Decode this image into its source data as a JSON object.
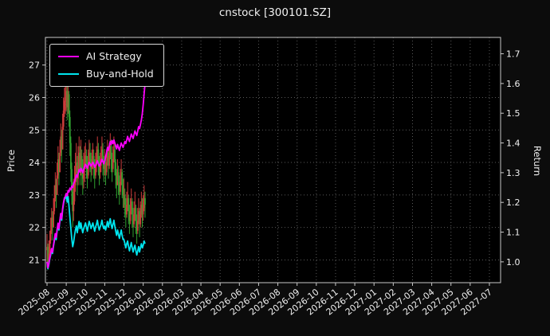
{
  "title": "cnstock [300101.SZ]",
  "chart_data": {
    "type": "candlestick+line",
    "title": "cnstock [300101.SZ]",
    "ylabel_left": "Price",
    "ylabel_right": "Return",
    "grid": "dotted",
    "legend_position": "upper-left",
    "x_tick_labels": [
      "2025-08",
      "2025-09",
      "2025-10",
      "2025-11",
      "2025-12",
      "2026-01",
      "2026-02",
      "2026-03",
      "2026-04",
      "2026-05",
      "2026-06",
      "2026-07",
      "2026-08",
      "2026-09",
      "2026-10",
      "2026-11",
      "2026-12",
      "2027-01",
      "2027-02",
      "2027-03",
      "2027-04",
      "2027-05",
      "2027-06",
      "2027-07"
    ],
    "y_left_ticks": [
      21,
      22,
      23,
      24,
      25,
      26,
      27
    ],
    "y_right_ticks": [
      1.0,
      1.1,
      1.2,
      1.3,
      1.4,
      1.5,
      1.6,
      1.7
    ],
    "y_left_range": [
      20.3,
      27.85
    ],
    "y_right_range": [
      0.93,
      1.755
    ],
    "colors": {
      "figure_bg": "#0c0c0c",
      "plot_bg": "#000000",
      "spine": "#c9c9c9",
      "grid": "#5a5a5a",
      "text": "#efefef",
      "candle_up": "#cc3b3b",
      "candle_down": "#2fa12f",
      "ai_strategy": "#ff00ff",
      "buy_and_hold": "#00e5ee"
    },
    "legend": {
      "entries": [
        {
          "label": "AI Strategy",
          "color": "#ff00ff"
        },
        {
          "label": "Buy-and-Hold",
          "color": "#00e5ee"
        }
      ]
    },
    "candles": {
      "start_month": "2025-08",
      "days_per_month": 21,
      "first_open": 21.3,
      "open_rule": "previous close",
      "close": [
        21.4,
        20.9,
        21.2,
        21.6,
        21.9,
        22.3,
        22.0,
        22.5,
        22.9,
        23.3,
        23.0,
        23.6,
        24.1,
        23.7,
        24.3,
        24.8,
        24.4,
        25.1,
        25.6,
        25.9,
        26.0,
        26.2,
        25.7,
        26.1,
        25.4,
        24.6,
        23.8,
        23.1,
        22.5,
        22.8,
        23.3,
        23.7,
        24.0,
        23.5,
        23.9,
        24.3,
        23.8,
        24.2,
        23.8,
        23.5,
        23.8,
        24.0,
        24.2,
        23.9,
        23.6,
        24.0,
        24.3,
        24.1,
        23.8,
        24.0,
        24.2,
        23.9,
        23.6,
        23.9,
        24.1,
        24.4,
        24.0,
        23.7,
        23.9,
        24.1,
        24.4,
        24.0,
        23.8,
        24.0,
        23.7,
        24.0,
        24.3,
        23.9,
        24.2,
        24.5,
        24.1,
        23.8,
        24.1,
        24.4,
        24.0,
        23.6,
        23.3,
        23.7,
        23.4,
        23.1,
        23.4,
        23.7,
        23.3,
        23.0,
        23.0,
        22.7,
        22.4,
        22.7,
        22.9,
        22.5,
        22.2,
        22.5,
        22.8,
        22.4,
        22.1,
        22.4,
        22.6,
        22.2,
        21.9,
        22.2,
        22.5,
        22.1,
        22.4,
        22.7,
        22.4,
        22.6,
        22.9,
        22.7
      ],
      "high": [
        21.8,
        21.5,
        21.6,
        21.9,
        22.3,
        22.6,
        22.5,
        22.9,
        23.3,
        23.7,
        23.5,
        24.0,
        24.5,
        24.3,
        24.7,
        25.2,
        25.0,
        25.5,
        26.0,
        26.3,
        26.4,
        26.5,
        26.4,
        26.4,
        26.2,
        25.6,
        24.8,
        24.0,
        23.4,
        23.5,
        23.9,
        24.3,
        24.6,
        24.2,
        24.5,
        24.8,
        24.5,
        24.7,
        24.4,
        24.1,
        24.3,
        24.5,
        24.6,
        24.4,
        24.2,
        24.4,
        24.7,
        24.6,
        24.3,
        24.4,
        24.6,
        24.4,
        24.1,
        24.3,
        24.5,
        24.8,
        24.6,
        24.2,
        24.3,
        24.5,
        24.8,
        24.6,
        24.2,
        24.4,
        24.2,
        24.4,
        24.7,
        24.5,
        24.6,
        24.9,
        24.7,
        24.3,
        24.5,
        24.8,
        24.6,
        24.1,
        23.8,
        24.1,
        23.9,
        23.6,
        23.8,
        24.1,
        23.8,
        23.5,
        23.5,
        23.2,
        22.9,
        23.1,
        23.4,
        23.0,
        22.7,
        22.9,
        23.2,
        22.9,
        22.6,
        22.8,
        23.1,
        22.7,
        22.4,
        22.6,
        22.9,
        22.6,
        22.8,
        23.1,
        22.9,
        23.0,
        23.3,
        23.1
      ],
      "low": [
        20.8,
        20.7,
        20.8,
        21.1,
        21.5,
        21.8,
        21.6,
        22.0,
        22.4,
        22.8,
        22.6,
        23.0,
        23.5,
        23.3,
        23.7,
        24.2,
        24.0,
        24.5,
        25.0,
        25.4,
        25.5,
        25.6,
        25.3,
        25.5,
        25.1,
        24.2,
        23.4,
        22.7,
        22.0,
        22.2,
        22.7,
        23.1,
        23.4,
        23.0,
        23.3,
        23.7,
        23.3,
        23.6,
        23.3,
        23.0,
        23.2,
        23.4,
        23.8,
        23.5,
        23.2,
        23.5,
        23.9,
        23.7,
        23.4,
        23.6,
        23.8,
        23.5,
        23.2,
        23.5,
        23.7,
        24.0,
        23.6,
        23.3,
        23.5,
        23.7,
        24.0,
        23.6,
        23.4,
        23.6,
        23.3,
        23.6,
        23.9,
        23.5,
        23.8,
        24.1,
        23.7,
        23.4,
        23.7,
        24.0,
        23.6,
        23.2,
        22.9,
        23.3,
        23.0,
        22.7,
        23.0,
        23.3,
        22.9,
        22.6,
        22.6,
        22.3,
        22.0,
        22.3,
        22.5,
        22.1,
        21.8,
        22.1,
        22.4,
        22.0,
        21.7,
        22.0,
        22.2,
        21.8,
        21.5,
        21.8,
        22.1,
        21.7,
        22.0,
        22.3,
        22.0,
        22.2,
        22.5,
        22.3
      ]
    },
    "series": [
      {
        "name": "AI Strategy",
        "axis": "right",
        "color": "#ff00ff",
        "values": [
          1.0,
          0.98,
          0.995,
          1.012,
          1.028,
          1.045,
          1.032,
          1.055,
          1.075,
          1.095,
          1.082,
          1.108,
          1.13,
          1.112,
          1.14,
          1.163,
          1.145,
          1.178,
          1.2,
          1.215,
          1.22,
          1.23,
          1.222,
          1.24,
          1.235,
          1.248,
          1.242,
          1.255,
          1.25,
          1.262,
          1.27,
          1.28,
          1.292,
          1.285,
          1.298,
          1.31,
          1.302,
          1.315,
          1.308,
          1.3,
          1.312,
          1.32,
          1.328,
          1.322,
          1.315,
          1.325,
          1.335,
          1.33,
          1.322,
          1.328,
          1.335,
          1.328,
          1.318,
          1.325,
          1.332,
          1.34,
          1.33,
          1.322,
          1.328,
          1.336,
          1.345,
          1.338,
          1.33,
          1.34,
          1.352,
          1.368,
          1.385,
          1.375,
          1.39,
          1.405,
          1.395,
          1.408,
          1.398,
          1.41,
          1.4,
          1.39,
          1.38,
          1.395,
          1.385,
          1.375,
          1.388,
          1.4,
          1.392,
          1.385,
          1.395,
          1.405,
          1.398,
          1.41,
          1.422,
          1.412,
          1.405,
          1.418,
          1.43,
          1.422,
          1.415,
          1.428,
          1.44,
          1.432,
          1.425,
          1.44,
          1.455,
          1.448,
          1.462,
          1.478,
          1.498,
          1.53,
          1.565,
          1.6
        ]
      },
      {
        "name": "Buy-and-Hold",
        "axis": "right",
        "color": "#00e5ee",
        "values": [
          1.0,
          0.977,
          0.991,
          1.009,
          1.023,
          1.042,
          1.028,
          1.051,
          1.07,
          1.089,
          1.075,
          1.103,
          1.126,
          1.107,
          1.136,
          1.159,
          1.14,
          1.173,
          1.196,
          1.21,
          1.215,
          1.224,
          1.201,
          1.22,
          1.187,
          1.15,
          1.112,
          1.079,
          1.051,
          1.065,
          1.089,
          1.107,
          1.121,
          1.098,
          1.117,
          1.136,
          1.112,
          1.131,
          1.112,
          1.098,
          1.112,
          1.121,
          1.131,
          1.117,
          1.103,
          1.121,
          1.136,
          1.126,
          1.112,
          1.121,
          1.131,
          1.117,
          1.103,
          1.117,
          1.126,
          1.14,
          1.121,
          1.107,
          1.117,
          1.126,
          1.14,
          1.121,
          1.112,
          1.121,
          1.107,
          1.121,
          1.136,
          1.117,
          1.131,
          1.145,
          1.126,
          1.112,
          1.126,
          1.14,
          1.121,
          1.103,
          1.089,
          1.107,
          1.093,
          1.079,
          1.093,
          1.107,
          1.089,
          1.075,
          1.075,
          1.061,
          1.047,
          1.061,
          1.07,
          1.051,
          1.037,
          1.051,
          1.065,
          1.047,
          1.033,
          1.047,
          1.056,
          1.037,
          1.023,
          1.037,
          1.051,
          1.033,
          1.047,
          1.061,
          1.047,
          1.056,
          1.07,
          1.061
        ]
      }
    ]
  }
}
